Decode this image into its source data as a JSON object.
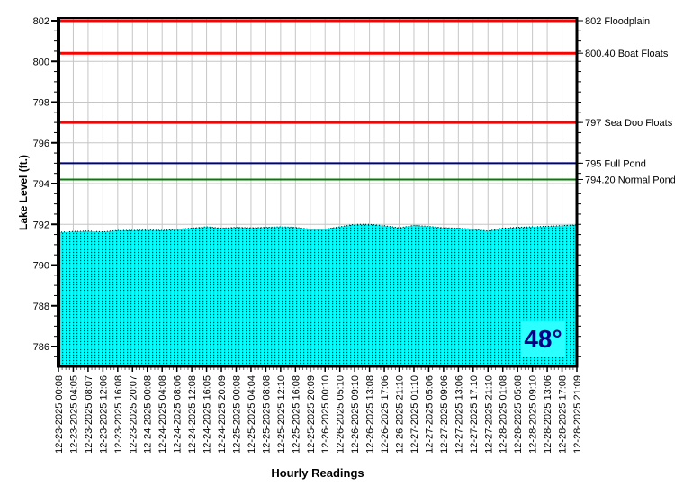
{
  "page": {
    "background": "#FFFFFF"
  },
  "temperature": {
    "value": "48°"
  },
  "chart_data": {
    "type": "area",
    "title": "",
    "xlabel": "Hourly Readings",
    "ylabel": "Lake Level (ft.)",
    "ylim": [
      785,
      802.2
    ],
    "y_ticks": [
      786,
      788,
      790,
      792,
      794,
      796,
      798,
      800,
      802
    ],
    "y_minor_step": 0.5,
    "x_minor_ticks_per_label": 4,
    "grid": true,
    "legend": false,
    "x_tick_labels": [
      "12-23-2025 00:08",
      "12-23-2025 04:05",
      "12-23-2025 08:07",
      "12-23-2025 12:06",
      "12-23-2025 16:08",
      "12-23-2025 20:07",
      "12-24-2025 00:08",
      "12-24-2025 04:08",
      "12-24-2025 08:06",
      "12-24-2025 12:08",
      "12-24-2025 16:05",
      "12-24-2025 20:09",
      "12-25-2025 00:08",
      "12-25-2025 04:04",
      "12-25-2025 08:08",
      "12-25-2025 12:10",
      "12-25-2025 16:08",
      "12-25-2025 20:09",
      "12-26-2025 00:10",
      "12-26-2025 05:10",
      "12-26-2025 09:10",
      "12-26-2025 13:08",
      "12-26-2025 17:06",
      "12-26-2025 21:10",
      "12-27-2025 01:10",
      "12-27-2025 05:06",
      "12-27-2025 09:06",
      "12-27-2025 13:06",
      "12-27-2025 17:10",
      "12-27-2025 21:10",
      "12-28-2025 01:08",
      "12-28-2025 05:08",
      "12-28-2025 09:10",
      "12-28-2025 13:06",
      "12-28-2025 17:08",
      "12-28-2025 21:09"
    ],
    "series": [
      {
        "name": "Lake Level (ft.)",
        "values": [
          791.61,
          791.65,
          791.67,
          791.63,
          791.7,
          791.7,
          791.72,
          791.7,
          791.75,
          791.81,
          791.88,
          791.81,
          791.85,
          791.83,
          791.85,
          791.88,
          791.85,
          791.76,
          791.77,
          791.88,
          792.0,
          792.0,
          791.93,
          791.83,
          791.95,
          791.9,
          791.83,
          791.81,
          791.76,
          791.67,
          791.81,
          791.85,
          791.88,
          791.9,
          791.94,
          791.97
        ]
      }
    ],
    "reference_lines": [
      {
        "value": 802,
        "label": "802 Floodplain",
        "color": "#FF0000",
        "width": 3
      },
      {
        "value": 800.4,
        "label": "800.40 Boat Floats",
        "color": "#FF0000",
        "width": 3
      },
      {
        "value": 797,
        "label": "797 Sea Doo Floats",
        "color": "#FF0000",
        "width": 3
      },
      {
        "value": 795,
        "label": "795 Full Pond",
        "color": "#000080",
        "width": 2
      },
      {
        "value": 794.2,
        "label": "794.20 Normal Pond",
        "color": "#008000",
        "width": 2
      }
    ],
    "colors": {
      "area": "#00FFFF",
      "area_dot": "#000000",
      "grid": "#C6C6C6",
      "axis": "#000000",
      "badge_bg": "#2BFFFF",
      "badge_text": "#000085"
    }
  }
}
